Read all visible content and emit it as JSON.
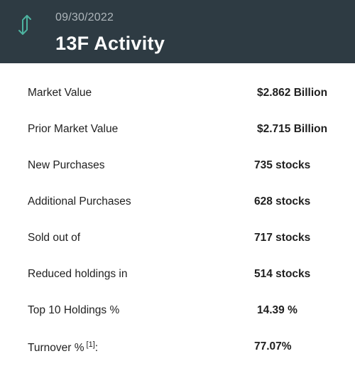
{
  "header": {
    "date": "09/30/2022",
    "title": "13F Activity",
    "icon": "up-down-arrows-icon",
    "accent_color": "#4db3a0",
    "background_color": "#2e3b43"
  },
  "rows": [
    {
      "label": "Market Value",
      "value": "$2.862 Billion"
    },
    {
      "label": "Prior Market Value",
      "value": "$2.715 Billion"
    },
    {
      "label": "New Purchases",
      "value": "735 stocks"
    },
    {
      "label": "Additional Purchases",
      "value": "628 stocks"
    },
    {
      "label": "Sold out of",
      "value": "717 stocks"
    },
    {
      "label": "Reduced holdings in",
      "value": "514 stocks"
    },
    {
      "label": "Top 10 Holdings %",
      "value": "14.39 %"
    },
    {
      "label": "Turnover %",
      "footnote": "[1]",
      "suffix": ":",
      "value": "77.07%"
    }
  ]
}
